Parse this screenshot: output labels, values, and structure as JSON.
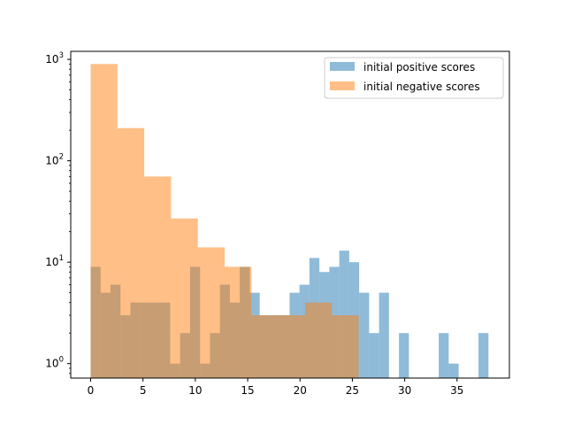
{
  "chart_data": {
    "type": "histogram",
    "title": "",
    "xlabel": "",
    "ylabel": "",
    "xlim": [
      -1.9,
      40
    ],
    "ylim": [
      0.72,
      1200
    ],
    "yscale": "log",
    "grid": false,
    "legend_position": "top-right",
    "x_ticks": [
      0,
      5,
      10,
      15,
      20,
      25,
      30,
      35
    ],
    "x_tick_labels": [
      "0",
      "5",
      "10",
      "15",
      "20",
      "25",
      "30",
      "35"
    ],
    "y_ticks": [
      1,
      10,
      100,
      1000
    ],
    "y_tick_labels": [
      "10^0",
      "10^1",
      "10^2",
      "10^3"
    ],
    "series": [
      {
        "name": "initial positive scores",
        "color": "#1f77b4",
        "alpha": 0.5,
        "bin_edges": [
          0,
          0.95,
          1.9,
          2.85,
          3.8,
          4.75,
          5.7,
          6.65,
          7.6,
          8.55,
          9.5,
          10.45,
          11.4,
          12.35,
          13.3,
          14.25,
          15.2,
          16.15,
          17.1,
          18.05,
          19.0,
          19.95,
          20.9,
          21.85,
          22.8,
          23.75,
          24.7,
          25.65,
          26.6,
          27.55,
          28.5,
          29.45,
          30.4,
          31.35,
          32.3,
          33.25,
          34.2,
          35.15,
          36.1,
          37.05,
          38.0
        ],
        "counts": [
          9,
          5,
          6,
          3,
          4,
          4,
          4,
          4,
          1,
          2,
          9,
          1,
          2,
          6,
          4,
          9,
          5,
          3,
          3,
          3,
          5,
          6,
          11,
          8,
          9,
          13,
          10,
          5,
          2,
          5,
          0,
          2,
          0,
          0,
          0,
          2,
          1,
          0,
          0,
          2
        ]
      },
      {
        "name": "initial negative scores",
        "color": "#ff7f0e",
        "alpha": 0.5,
        "bin_edges": [
          0,
          2.56,
          5.12,
          7.68,
          10.24,
          12.8,
          15.36,
          17.92,
          20.48,
          23.04,
          25.6
        ],
        "counts": [
          900,
          210,
          70,
          27,
          14,
          9,
          3,
          3,
          4,
          3
        ]
      }
    ]
  }
}
